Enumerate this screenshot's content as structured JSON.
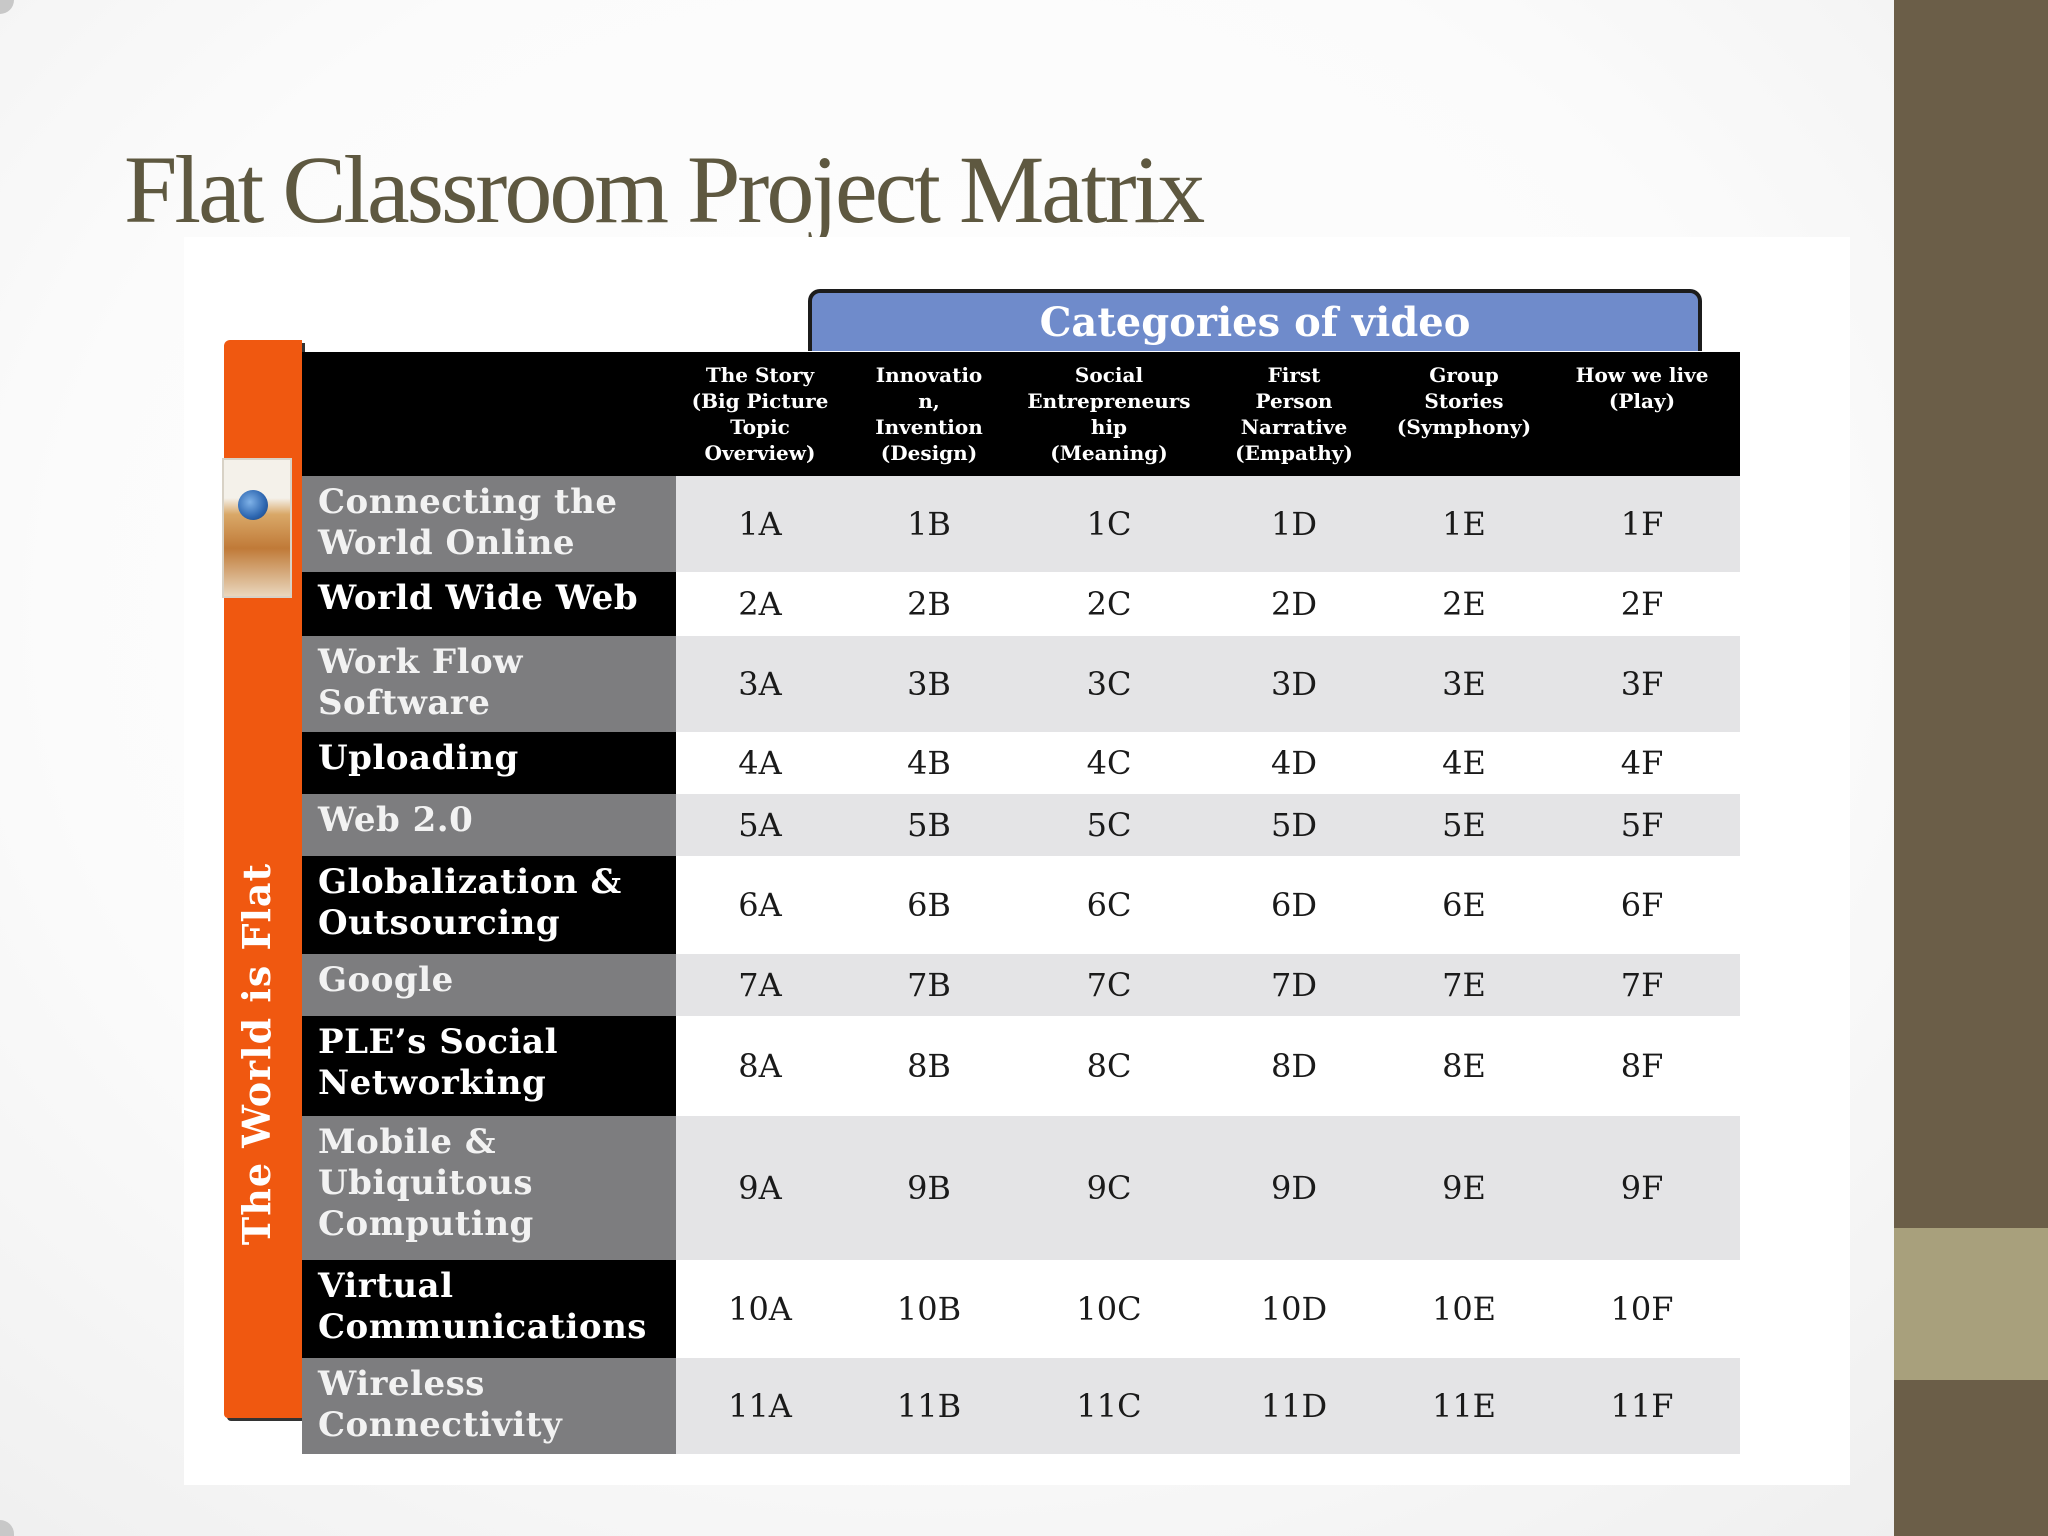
{
  "slide": {
    "title": "Flat Classroom Project Matrix"
  },
  "matrix": {
    "banner": "Categories of video",
    "side_label": "The World is Flat",
    "columns": [
      "The Story\n(Big Picture\nTopic\nOverview)",
      "Innovatio\nn,\nInvention\n(Design)",
      "Social\nEntrepreneurs\nhip\n(Meaning)",
      "First\nPerson\nNarrative\n(Empathy)",
      "Group\nStories\n(Symphony)",
      "How we live\n(Play)"
    ],
    "rows": [
      {
        "label": "Connecting the\nWorld Online",
        "cells": [
          "1A",
          "1B",
          "1C",
          "1D",
          "1E",
          "1F"
        ]
      },
      {
        "label": "World Wide Web",
        "cells": [
          "2A",
          "2B",
          "2C",
          "2D",
          "2E",
          "2F"
        ]
      },
      {
        "label": "Work Flow\nSoftware",
        "cells": [
          "3A",
          "3B",
          "3C",
          "3D",
          "3E",
          "3F"
        ]
      },
      {
        "label": "Uploading",
        "cells": [
          "4A",
          "4B",
          "4C",
          "4D",
          "4E",
          "4F"
        ]
      },
      {
        "label": "Web 2.0",
        "cells": [
          "5A",
          "5B",
          "5C",
          "5D",
          "5E",
          "5F"
        ]
      },
      {
        "label": "Globalization &\nOutsourcing",
        "cells": [
          "6A",
          "6B",
          "6C",
          "6D",
          "6E",
          "6F"
        ]
      },
      {
        "label": "Google",
        "cells": [
          "7A",
          "7B",
          "7C",
          "7D",
          "7E",
          "7F"
        ]
      },
      {
        "label": "PLE’s Social\nNetworking",
        "cells": [
          "8A",
          "8B",
          "8C",
          "8D",
          "8E",
          "8F"
        ]
      },
      {
        "label": "Mobile &\nUbiquitous\nComputing",
        "cells": [
          "9A",
          "9B",
          "9C",
          "9D",
          "9E",
          "9F"
        ]
      },
      {
        "label": "Virtual\nCommunications",
        "cells": [
          "10A",
          "10B",
          "10C",
          "10D",
          "10E",
          "10F"
        ]
      },
      {
        "label": "Wireless\nConnectivity",
        "cells": [
          "11A",
          "11B",
          "11C",
          "11D",
          "11E",
          "11F"
        ]
      }
    ]
  },
  "colors": {
    "title": "#5e5840",
    "banner": "#6f8bcb",
    "side_bar": "#f05810",
    "theme_bar": "#6b5e48",
    "theme_accent": "#a8a07c"
  }
}
